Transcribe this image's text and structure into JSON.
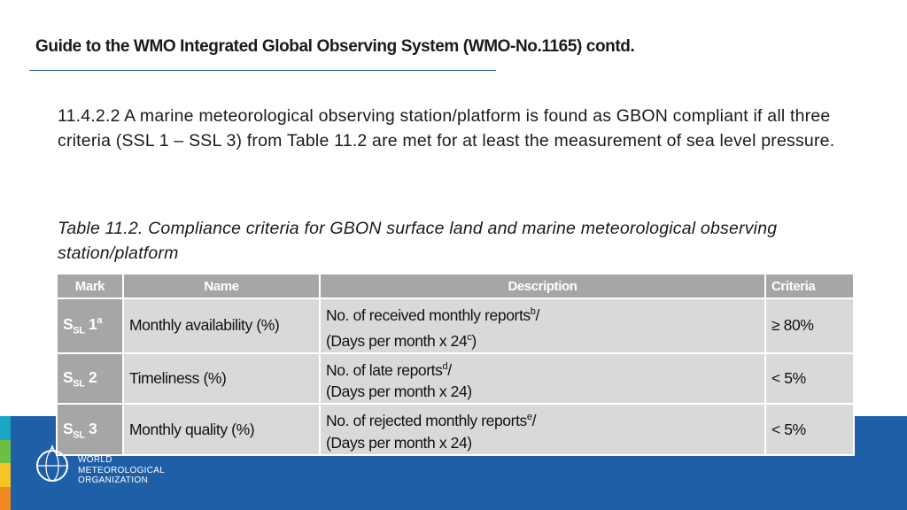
{
  "header": {
    "title": "Guide to the WMO Integrated Global Observing System (WMO-No.1165) contd."
  },
  "body": {
    "paragraph": "11.4.2.2 A marine meteorological observing station/platform is found as GBON compliant if all three criteria (SSL 1 – SSL 3) from Table 11.2 are met for at least the measurement of sea level pressure.",
    "caption": "Table 11.2. Compliance criteria for GBON surface land and marine meteorological observing station/platform"
  },
  "table": {
    "columns": [
      "Mark",
      "Name",
      "Description",
      "Criteria"
    ],
    "rows": [
      [
        [
          [
            {
              "text": "S"
            },
            {
              "text": "SL",
              "style": "sub"
            },
            {
              "text": " 1"
            },
            {
              "text": "a",
              "style": "sup"
            }
          ]
        ],
        [
          [
            {
              "text": "Monthly availability (%)"
            }
          ]
        ],
        [
          [
            {
              "text": "No. of received monthly reports"
            },
            {
              "text": "b",
              "style": "sup"
            },
            {
              "text": "/"
            }
          ],
          [
            {
              "text": "(Days per month x 24"
            },
            {
              "text": "c",
              "style": "sup"
            },
            {
              "text": ")"
            }
          ]
        ],
        [
          [
            {
              "text": "≥ 80%"
            }
          ]
        ]
      ],
      [
        [
          [
            {
              "text": "S"
            },
            {
              "text": "SL",
              "style": "sub"
            },
            {
              "text": " 2"
            }
          ]
        ],
        [
          [
            {
              "text": "Timeliness (%)"
            }
          ]
        ],
        [
          [
            {
              "text": "No. of late reports"
            },
            {
              "text": "d",
              "style": "sup"
            },
            {
              "text": "/"
            }
          ],
          [
            {
              "text": "(Days per month x 24)"
            }
          ]
        ],
        [
          [
            {
              "text": "< 5%"
            }
          ]
        ]
      ],
      [
        [
          [
            {
              "text": "S"
            },
            {
              "text": "SL",
              "style": "sub"
            },
            {
              "text": " 3"
            }
          ]
        ],
        [
          [
            {
              "text": "Monthly quality (%)"
            }
          ]
        ],
        [
          [
            {
              "text": "No. of rejected monthly reports"
            },
            {
              "text": "e",
              "style": "sup"
            },
            {
              "text": "/"
            }
          ],
          [
            {
              "text": "(Days per month x 24)"
            }
          ]
        ],
        [
          [
            {
              "text": "< 5%"
            }
          ]
        ]
      ]
    ]
  },
  "footer": {
    "logo": [
      "WORLD",
      "METEOROLOGICAL",
      "ORGANIZATION"
    ]
  }
}
